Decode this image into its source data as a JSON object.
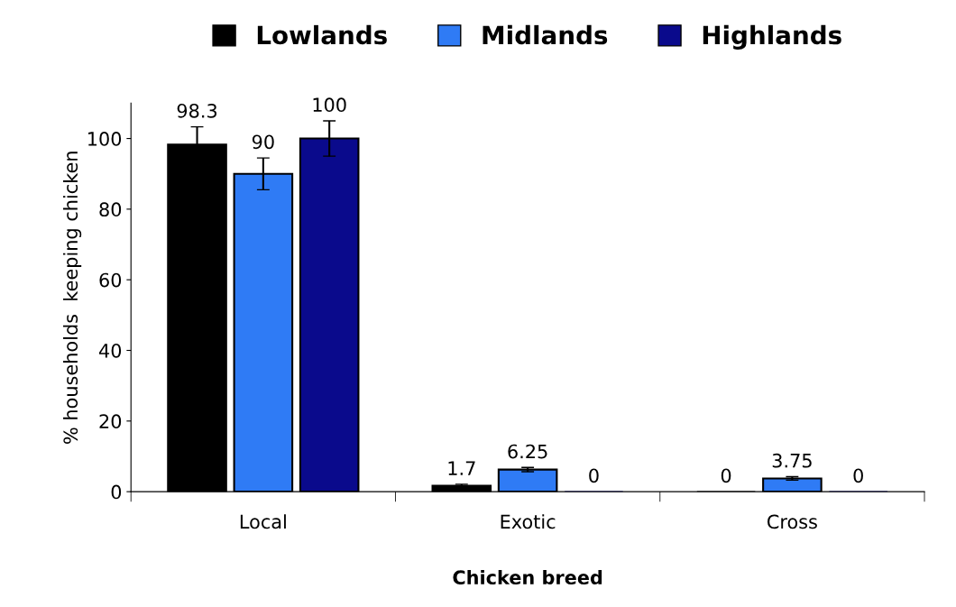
{
  "chart_data": {
    "type": "bar",
    "xlabel": "Chicken breed",
    "ylabel": "% households  keeping chicken",
    "categories": [
      "Local",
      "Exotic",
      "Cross"
    ],
    "series": [
      {
        "name": "Lowlands",
        "color": "#000000",
        "values": [
          98.3,
          1.7,
          0
        ],
        "errors": [
          5,
          0.4,
          null
        ]
      },
      {
        "name": "Midlands",
        "color": "#2f7bf5",
        "values": [
          90,
          6.25,
          3.75
        ],
        "errors": [
          4.5,
          0.6,
          0.5
        ]
      },
      {
        "name": "Highlands",
        "color": "#0a0a8c",
        "values": [
          100,
          0,
          0
        ],
        "errors": [
          5,
          null,
          null
        ]
      }
    ],
    "ylim": [
      0,
      110
    ],
    "yticks": [
      0,
      20,
      40,
      60,
      80,
      100
    ],
    "data_labels": true,
    "grid": false,
    "legend": "top"
  }
}
